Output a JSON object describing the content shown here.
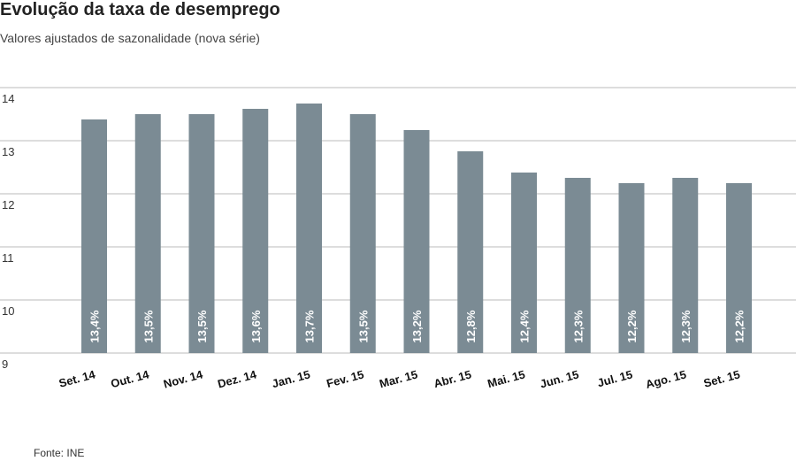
{
  "title": "Evolução da taxa de desemprego",
  "subtitle": "Valores ajustados de sazonalidade (nova série)",
  "source": "Fonte: INE",
  "chart_data": {
    "type": "bar",
    "categories": [
      "Set. 14",
      "Out. 14",
      "Nov. 14",
      "Dez. 14",
      "Jan. 15",
      "Fev. 15",
      "Mar. 15",
      "Abr. 15",
      "Mai. 15",
      "Jun. 15",
      "Jul. 15",
      "Ago. 15",
      "Set. 15"
    ],
    "values": [
      13.4,
      13.5,
      13.5,
      13.6,
      13.7,
      13.5,
      13.2,
      12.8,
      12.4,
      12.3,
      12.2,
      12.3,
      12.2
    ],
    "data_labels": [
      "13,4%",
      "13,5%",
      "13,5%",
      "13,6%",
      "13,7%",
      "13,5%",
      "13,2%",
      "12,8%",
      "12,4%",
      "12,3%",
      "12,2%",
      "12,3%",
      "12,2%"
    ],
    "yticks": [
      9,
      10,
      11,
      12,
      13,
      14
    ],
    "ylim": [
      9,
      14
    ],
    "grid": true,
    "bar_color": "#7b8b94",
    "grid_color": "#bbbbbb"
  }
}
